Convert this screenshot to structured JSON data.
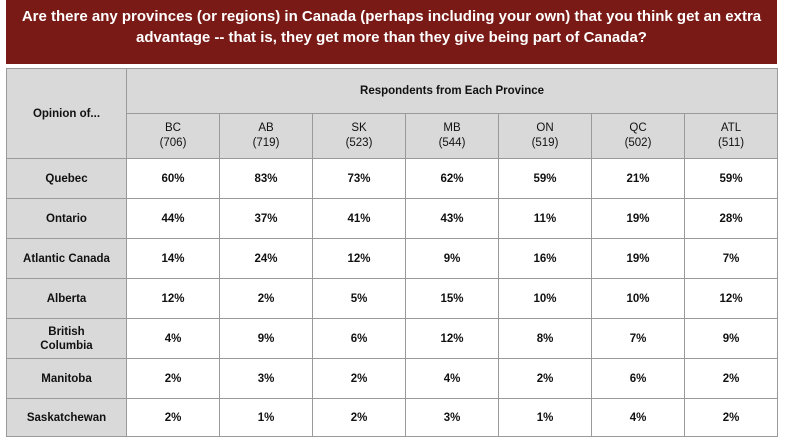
{
  "chart_data": {
    "type": "table",
    "title": "Are there any provinces (or regions) in Canada (perhaps including your own) that you think get an extra advantage -- that is, they get more than they give being part of Canada?",
    "corner_label": "Opinion of...",
    "group_header": "Respondents from Each Province",
    "columns": [
      {
        "name": "BC",
        "n": "(706)"
      },
      {
        "name": "AB",
        "n": "(719)"
      },
      {
        "name": "SK",
        "n": "(523)"
      },
      {
        "name": "MB",
        "n": "(544)"
      },
      {
        "name": "ON",
        "n": "(519)"
      },
      {
        "name": "QC",
        "n": "(502)"
      },
      {
        "name": "ATL",
        "n": "(511)"
      }
    ],
    "rows": [
      {
        "label": "Quebec",
        "values": [
          "60%",
          "83%",
          "73%",
          "62%",
          "59%",
          "21%",
          "59%"
        ]
      },
      {
        "label": "Ontario",
        "values": [
          "44%",
          "37%",
          "41%",
          "43%",
          "11%",
          "19%",
          "28%"
        ]
      },
      {
        "label": "Atlantic Canada",
        "values": [
          "14%",
          "24%",
          "12%",
          "9%",
          "16%",
          "19%",
          "7%"
        ]
      },
      {
        "label": "Alberta",
        "values": [
          "12%",
          "2%",
          "5%",
          "15%",
          "10%",
          "10%",
          "12%"
        ]
      },
      {
        "label": "British Columbia",
        "values": [
          "4%",
          "9%",
          "6%",
          "12%",
          "8%",
          "7%",
          "9%"
        ]
      },
      {
        "label": "Manitoba",
        "values": [
          "2%",
          "3%",
          "2%",
          "4%",
          "2%",
          "6%",
          "2%"
        ]
      },
      {
        "label": "Saskatchewan",
        "values": [
          "2%",
          "1%",
          "2%",
          "3%",
          "1%",
          "4%",
          "2%"
        ]
      }
    ],
    "colors": {
      "title_bg": "#7a1a16",
      "header_bg": "#d9d9d9",
      "border": "#9a9a9a"
    }
  }
}
